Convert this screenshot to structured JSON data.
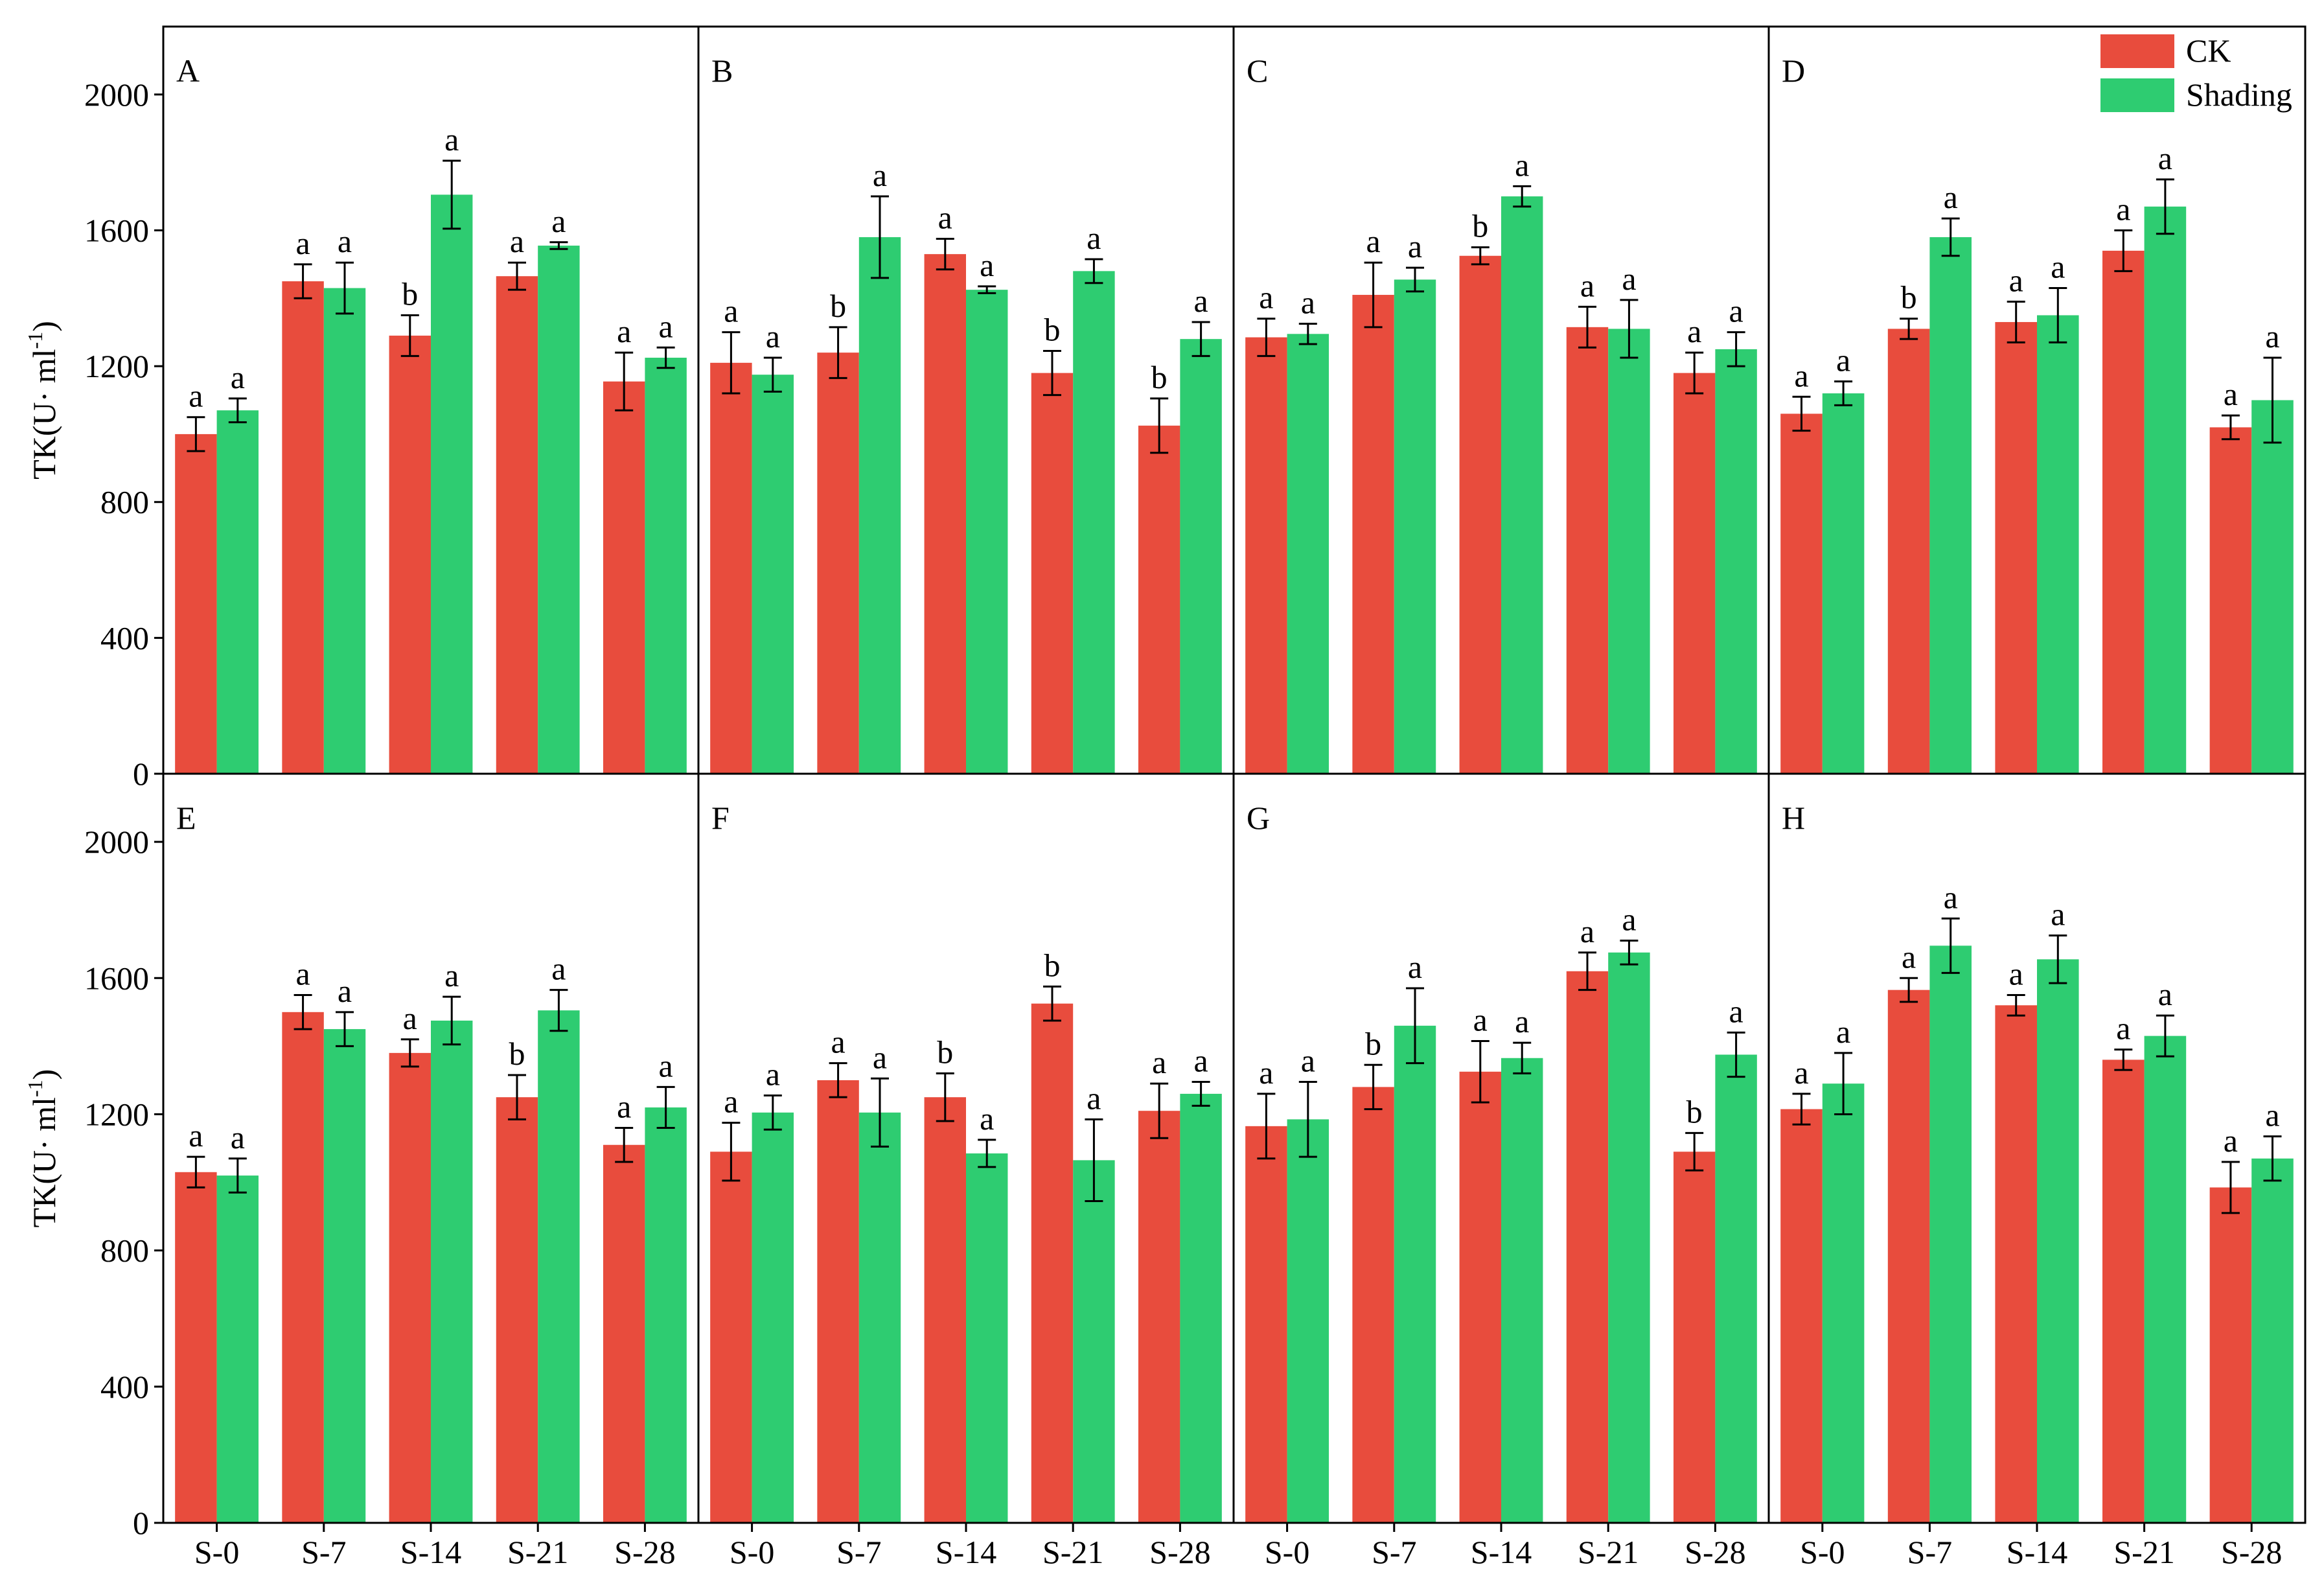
{
  "chart_data": [
    {
      "type": "bar",
      "panel": "A",
      "y_label": [
        "TK(U· ml",
        "-1",
        ")"
      ],
      "ylim": [
        0,
        2200
      ],
      "yticks": [
        0,
        400,
        800,
        1200,
        1600,
        2000
      ],
      "series": [
        {
          "color": "#e84c3d",
          "values": [
            1000,
            1450,
            1290,
            1465,
            1155
          ],
          "errors": [
            50,
            50,
            60,
            40,
            85
          ],
          "letters": [
            "a",
            "a",
            "b",
            "a",
            "a"
          ]
        },
        {
          "color": "#2ecc71",
          "values": [
            1070,
            1430,
            1705,
            1555,
            1225
          ],
          "errors": [
            35,
            75,
            100,
            10,
            30
          ],
          "letters": [
            "a",
            "a",
            "a",
            "a",
            "a"
          ]
        }
      ]
    },
    {
      "type": "bar",
      "panel": "B",
      "series": [
        {
          "color": "#e84c3d",
          "values": [
            1210,
            1240,
            1530,
            1180,
            1025
          ],
          "errors": [
            90,
            75,
            45,
            65,
            80
          ],
          "letters": [
            "a",
            "b",
            "a",
            "b",
            "b"
          ]
        },
        {
          "color": "#2ecc71",
          "values": [
            1175,
            1580,
            1425,
            1480,
            1280
          ],
          "errors": [
            50,
            120,
            10,
            35,
            50
          ],
          "letters": [
            "a",
            "a",
            "a",
            "a",
            "a"
          ]
        }
      ]
    },
    {
      "type": "bar",
      "panel": "C",
      "series": [
        {
          "color": "#e84c3d",
          "values": [
            1285,
            1410,
            1525,
            1315,
            1180
          ],
          "errors": [
            55,
            95,
            25,
            60,
            60
          ],
          "letters": [
            "a",
            "a",
            "b",
            "a",
            "a"
          ]
        },
        {
          "color": "#2ecc71",
          "values": [
            1295,
            1455,
            1700,
            1310,
            1250
          ],
          "errors": [
            30,
            35,
            30,
            85,
            50
          ],
          "letters": [
            "a",
            "a",
            "a",
            "a",
            "a"
          ]
        }
      ]
    },
    {
      "type": "bar",
      "panel": "D",
      "series": [
        {
          "name": "CK",
          "color": "#e84c3d",
          "values": [
            1060,
            1310,
            1330,
            1540,
            1020
          ],
          "errors": [
            50,
            30,
            60,
            60,
            35
          ],
          "letters": [
            "a",
            "b",
            "a",
            "a",
            "a"
          ]
        },
        {
          "name": "Shading",
          "color": "#2ecc71",
          "values": [
            1120,
            1580,
            1350,
            1670,
            1100
          ],
          "errors": [
            35,
            55,
            80,
            80,
            125
          ],
          "letters": [
            "a",
            "a",
            "a",
            "a",
            "a"
          ]
        }
      ]
    },
    {
      "type": "bar",
      "panel": "E",
      "y_label": [
        "TK(U· ml",
        "-1",
        ")"
      ],
      "ylim": [
        0,
        2200
      ],
      "yticks": [
        0,
        400,
        800,
        1200,
        1600,
        2000
      ],
      "categories": [
        "S-0",
        "S-7",
        "S-14",
        "S-21",
        "S-28"
      ],
      "series": [
        {
          "color": "#e84c3d",
          "values": [
            1030,
            1500,
            1380,
            1250,
            1110
          ],
          "errors": [
            45,
            50,
            40,
            65,
            50
          ],
          "letters": [
            "a",
            "a",
            "a",
            "b",
            "a"
          ]
        },
        {
          "color": "#2ecc71",
          "values": [
            1020,
            1450,
            1475,
            1505,
            1220
          ],
          "errors": [
            50,
            50,
            70,
            60,
            60
          ],
          "letters": [
            "a",
            "a",
            "a",
            "a",
            "a"
          ]
        }
      ]
    },
    {
      "type": "bar",
      "panel": "F",
      "categories": [
        "S-0",
        "S-7",
        "S-14",
        "S-21",
        "S-28"
      ],
      "series": [
        {
          "color": "#e84c3d",
          "values": [
            1090,
            1300,
            1250,
            1525,
            1210
          ],
          "errors": [
            85,
            50,
            70,
            50,
            80
          ],
          "letters": [
            "a",
            "a",
            "b",
            "b",
            "a"
          ]
        },
        {
          "color": "#2ecc71",
          "values": [
            1205,
            1205,
            1085,
            1065,
            1260
          ],
          "errors": [
            50,
            100,
            40,
            120,
            35
          ],
          "letters": [
            "a",
            "a",
            "a",
            "a",
            "a"
          ]
        }
      ]
    },
    {
      "type": "bar",
      "panel": "G",
      "categories": [
        "S-0",
        "S-7",
        "S-14",
        "S-21",
        "S-28"
      ],
      "series": [
        {
          "color": "#e84c3d",
          "values": [
            1165,
            1280,
            1325,
            1620,
            1090
          ],
          "errors": [
            95,
            65,
            90,
            55,
            55
          ],
          "letters": [
            "a",
            "b",
            "a",
            "a",
            "b"
          ]
        },
        {
          "color": "#2ecc71",
          "values": [
            1185,
            1460,
            1365,
            1675,
            1375
          ],
          "errors": [
            110,
            110,
            45,
            35,
            65
          ],
          "letters": [
            "a",
            "a",
            "a",
            "a",
            "a"
          ]
        }
      ]
    },
    {
      "type": "bar",
      "panel": "H",
      "categories": [
        "S-0",
        "S-7",
        "S-14",
        "S-21",
        "S-28"
      ],
      "series": [
        {
          "color": "#e84c3d",
          "values": [
            1215,
            1565,
            1520,
            1360,
            985
          ],
          "errors": [
            45,
            35,
            30,
            30,
            75
          ],
          "letters": [
            "a",
            "a",
            "a",
            "a",
            "a"
          ]
        },
        {
          "color": "#2ecc71",
          "values": [
            1290,
            1695,
            1655,
            1430,
            1070
          ],
          "errors": [
            90,
            80,
            70,
            60,
            65
          ],
          "letters": [
            "a",
            "a",
            "a",
            "a",
            "a"
          ]
        }
      ]
    }
  ]
}
